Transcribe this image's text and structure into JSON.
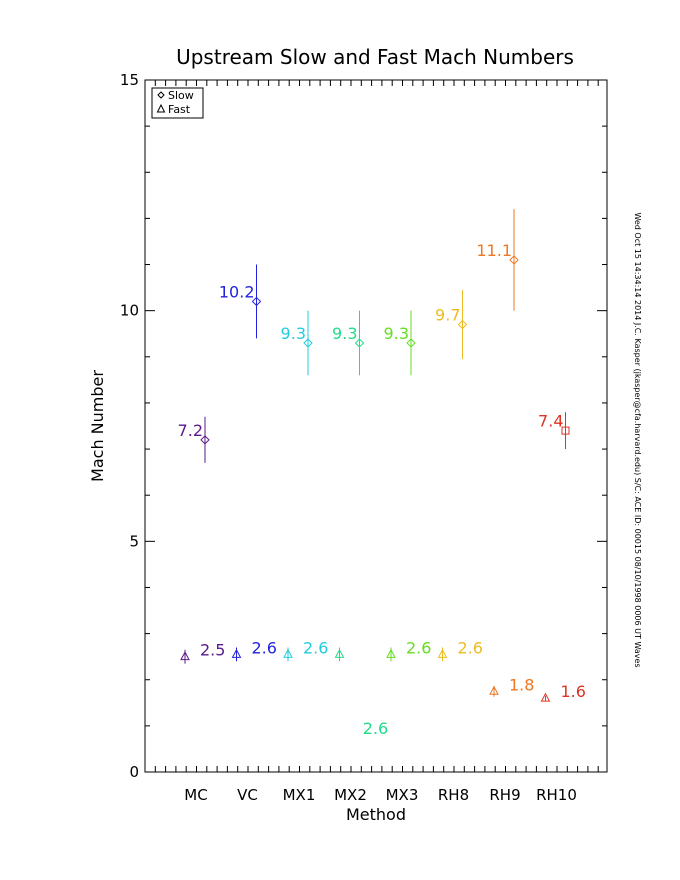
{
  "chart_data": {
    "type": "scatter",
    "title": "Upstream Slow and Fast Mach Numbers",
    "xlabel": "Method",
    "ylabel": "Mach Number",
    "categories": [
      "MC",
      "VC",
      "MX1",
      "MX2",
      "MX3",
      "RH8",
      "RH9",
      "RH10"
    ],
    "ylim": [
      0,
      15
    ],
    "yticks": [
      "0",
      "5",
      "10",
      "15"
    ],
    "legend": {
      "placement": "top-left",
      "entries": [
        {
          "label": "Slow",
          "marker": "diamond"
        },
        {
          "label": "Fast",
          "marker": "triangle"
        }
      ]
    },
    "side_text": "Wed Oct 15 14:34:14 2014  J.C. Kasper (jkasper@cfa.harvard.edu)  S/C: ACE ID: 00015 08/10/1998  0006 UT Waves",
    "series": [
      {
        "name": "Slow",
        "marker": "diamond",
        "points": [
          {
            "category": "MC",
            "value": 7.2,
            "error": 0.5,
            "label": "7.2",
            "color": "#5a1a8a"
          },
          {
            "category": "VC",
            "value": 10.2,
            "error": 0.8,
            "label": "10.2",
            "color": "#2222dd"
          },
          {
            "category": "MX1",
            "value": 9.3,
            "error": 0.7,
            "label": "9.3",
            "color": "#22ccdd"
          },
          {
            "category": "MX2",
            "value": 9.3,
            "error": 0.7,
            "label": "9.3",
            "color": "#22dd88"
          },
          {
            "category": "MX3",
            "value": 9.3,
            "error": 0.7,
            "label": "9.3",
            "color": "#66dd22"
          },
          {
            "category": "RH8",
            "value": 9.7,
            "error": 0.75,
            "label": "9.7",
            "color": "#eebb22"
          },
          {
            "category": "RH9",
            "value": 11.1,
            "error": 1.1,
            "label": "11.1",
            "color": "#ee7722"
          },
          {
            "category": "RH10",
            "value": 7.4,
            "error": 0.4,
            "label": "7.4",
            "color": "#dd3322",
            "marker": "square"
          }
        ]
      },
      {
        "name": "Fast",
        "marker": "triangle",
        "points": [
          {
            "category": "MC",
            "value": 2.5,
            "error": 0.15,
            "label": "2.5",
            "color": "#5a1a8a"
          },
          {
            "category": "VC",
            "value": 2.55,
            "error": 0.15,
            "label": "2.6",
            "color": "#2222dd"
          },
          {
            "category": "MX1",
            "value": 2.55,
            "error": 0.15,
            "label": "2.6",
            "color": "#22ccdd"
          },
          {
            "category": "MX2",
            "value": 2.55,
            "error": 0.15,
            "label": "2.6",
            "color": "#22dd88",
            "label_value": 0.95
          },
          {
            "category": "MX3",
            "value": 2.55,
            "error": 0.15,
            "label": "2.6",
            "color": "#66dd22"
          },
          {
            "category": "RH8",
            "value": 2.55,
            "error": 0.15,
            "label": "2.6",
            "color": "#eebb22"
          },
          {
            "category": "RH9",
            "value": 1.75,
            "error": 0.12,
            "label": "1.8",
            "color": "#ee7722"
          },
          {
            "category": "RH10",
            "value": 1.6,
            "error": 0.05,
            "label": "1.6",
            "color": "#dd3322"
          }
        ]
      }
    ]
  }
}
